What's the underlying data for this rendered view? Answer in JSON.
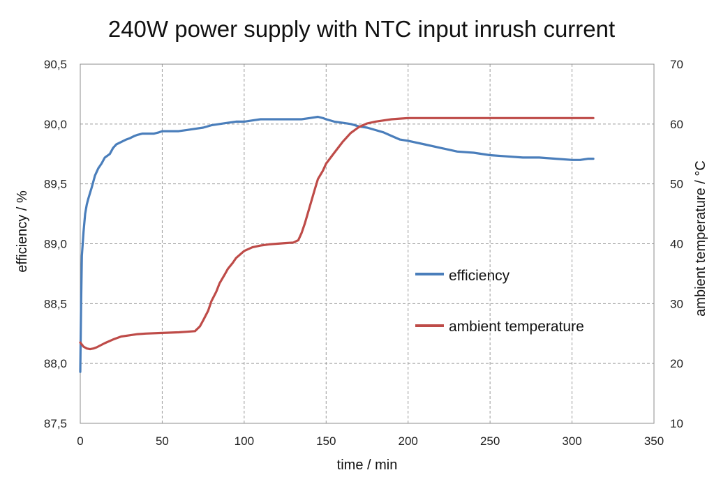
{
  "chart_data": {
    "type": "line",
    "title": "240W power supply with NTC input inrush current",
    "xlabel": "time / min",
    "ylabel": "efficiency / %",
    "y2label": "ambient temperature / °C",
    "xlim": [
      0,
      350
    ],
    "ylim": [
      87.5,
      90.5
    ],
    "y2lim": [
      10,
      70
    ],
    "xticks": [
      "0",
      "50",
      "100",
      "150",
      "200",
      "250",
      "300",
      "350"
    ],
    "yticks": [
      "87,5",
      "88,0",
      "88,5",
      "89,0",
      "89,5",
      "90,0",
      "90,5"
    ],
    "y2ticks": [
      "10",
      "20",
      "30",
      "40",
      "50",
      "60",
      "70"
    ],
    "grid": true,
    "legend_position": "center-right",
    "series": [
      {
        "name": "efficiency",
        "axis": "left",
        "color": "#4a7ebb",
        "x": [
          0,
          0.5,
          1,
          2,
          3,
          4,
          5,
          7,
          9,
          11,
          13,
          15,
          18,
          20,
          22,
          25,
          28,
          30,
          33,
          35,
          38,
          40,
          43,
          45,
          48,
          50,
          55,
          60,
          65,
          70,
          75,
          80,
          85,
          90,
          95,
          100,
          105,
          110,
          115,
          120,
          125,
          130,
          135,
          140,
          145,
          148,
          150,
          155,
          160,
          165,
          170,
          175,
          180,
          185,
          190,
          195,
          200,
          210,
          220,
          230,
          240,
          250,
          260,
          270,
          280,
          290,
          300,
          305,
          310,
          313
        ],
        "y": [
          87.93,
          88.5,
          88.9,
          89.1,
          89.25,
          89.33,
          89.38,
          89.47,
          89.57,
          89.63,
          89.67,
          89.72,
          89.75,
          89.8,
          89.83,
          89.85,
          89.87,
          89.88,
          89.9,
          89.91,
          89.92,
          89.92,
          89.92,
          89.92,
          89.93,
          89.94,
          89.94,
          89.94,
          89.95,
          89.96,
          89.97,
          89.99,
          90.0,
          90.01,
          90.02,
          90.02,
          90.03,
          90.04,
          90.04,
          90.04,
          90.04,
          90.04,
          90.04,
          90.05,
          90.06,
          90.05,
          90.04,
          90.02,
          90.01,
          90.0,
          89.98,
          89.97,
          89.95,
          89.93,
          89.9,
          89.87,
          89.86,
          89.83,
          89.8,
          89.77,
          89.76,
          89.74,
          89.73,
          89.72,
          89.72,
          89.71,
          89.7,
          89.7,
          89.71,
          89.71
        ]
      },
      {
        "name": "ambient temperature",
        "axis": "right",
        "color": "#be4b48",
        "x": [
          0,
          2,
          4,
          6,
          8,
          10,
          15,
          20,
          25,
          30,
          35,
          40,
          50,
          60,
          65,
          70,
          73,
          75,
          78,
          80,
          83,
          85,
          88,
          90,
          93,
          95,
          100,
          105,
          110,
          115,
          120,
          125,
          130,
          133,
          135,
          137,
          140,
          143,
          145,
          148,
          150,
          155,
          160,
          165,
          170,
          175,
          180,
          185,
          190,
          195,
          200,
          210,
          220,
          230,
          240,
          250,
          260,
          270,
          280,
          290,
          300,
          305,
          310,
          313
        ],
        "y": [
          23.5,
          22.8,
          22.5,
          22.4,
          22.5,
          22.7,
          23.4,
          24.0,
          24.5,
          24.7,
          24.9,
          25.0,
          25.1,
          25.2,
          25.3,
          25.4,
          26.2,
          27.2,
          28.8,
          30.4,
          32.0,
          33.4,
          34.8,
          35.8,
          36.8,
          37.6,
          38.8,
          39.4,
          39.7,
          39.9,
          40.0,
          40.1,
          40.2,
          40.6,
          41.8,
          43.4,
          46.2,
          49.0,
          50.8,
          52.2,
          53.4,
          55.2,
          57.0,
          58.5,
          59.5,
          60.1,
          60.4,
          60.6,
          60.8,
          60.9,
          61.0,
          61.0,
          61.0,
          61.0,
          61.0,
          61.0,
          61.0,
          61.0,
          61.0,
          61.0,
          61.0,
          61.0,
          61.0,
          61.0
        ]
      }
    ]
  }
}
